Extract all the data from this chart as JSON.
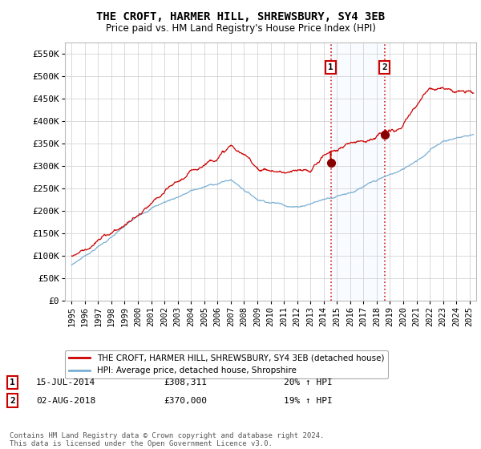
{
  "title": "THE CROFT, HARMER HILL, SHREWSBURY, SY4 3EB",
  "subtitle": "Price paid vs. HM Land Registry's House Price Index (HPI)",
  "legend_line1": "THE CROFT, HARMER HILL, SHREWSBURY, SY4 3EB (detached house)",
  "legend_line2": "HPI: Average price, detached house, Shropshire",
  "annotation1_date": "15-JUL-2014",
  "annotation1_price": "£308,311",
  "annotation1_hpi": "20% ↑ HPI",
  "annotation2_date": "02-AUG-2018",
  "annotation2_price": "£370,000",
  "annotation2_hpi": "19% ↑ HPI",
  "footer": "Contains HM Land Registry data © Crown copyright and database right 2024.\nThis data is licensed under the Open Government Licence v3.0.",
  "red_line_color": "#cc0000",
  "blue_line_color": "#7bafd4",
  "dashed_color": "#cc0000",
  "span_color": "#ddeeff",
  "background_color": "#ffffff",
  "ylim": [
    0,
    575000
  ],
  "yticks": [
    0,
    50000,
    100000,
    150000,
    200000,
    250000,
    300000,
    350000,
    400000,
    450000,
    500000,
    550000
  ],
  "ytick_labels": [
    "£0",
    "£50K",
    "£100K",
    "£150K",
    "£200K",
    "£250K",
    "£300K",
    "£350K",
    "£400K",
    "£450K",
    "£500K",
    "£550K"
  ],
  "sale1_x": 2014.54,
  "sale1_y": 308311,
  "sale2_x": 2018.59,
  "sale2_y": 370000,
  "xlim_start": 1994.5,
  "xlim_end": 2025.5,
  "xtick_labels": [
    "1995",
    "1996",
    "1997",
    "1998",
    "1999",
    "2000",
    "2001",
    "2002",
    "2003",
    "2004",
    "2005",
    "2006",
    "2007",
    "2008",
    "2009",
    "2010",
    "2011",
    "2012",
    "2013",
    "2014",
    "2015",
    "2016",
    "2017",
    "2018",
    "2019",
    "2020",
    "2021",
    "2022",
    "2023",
    "2024",
    "2025"
  ]
}
